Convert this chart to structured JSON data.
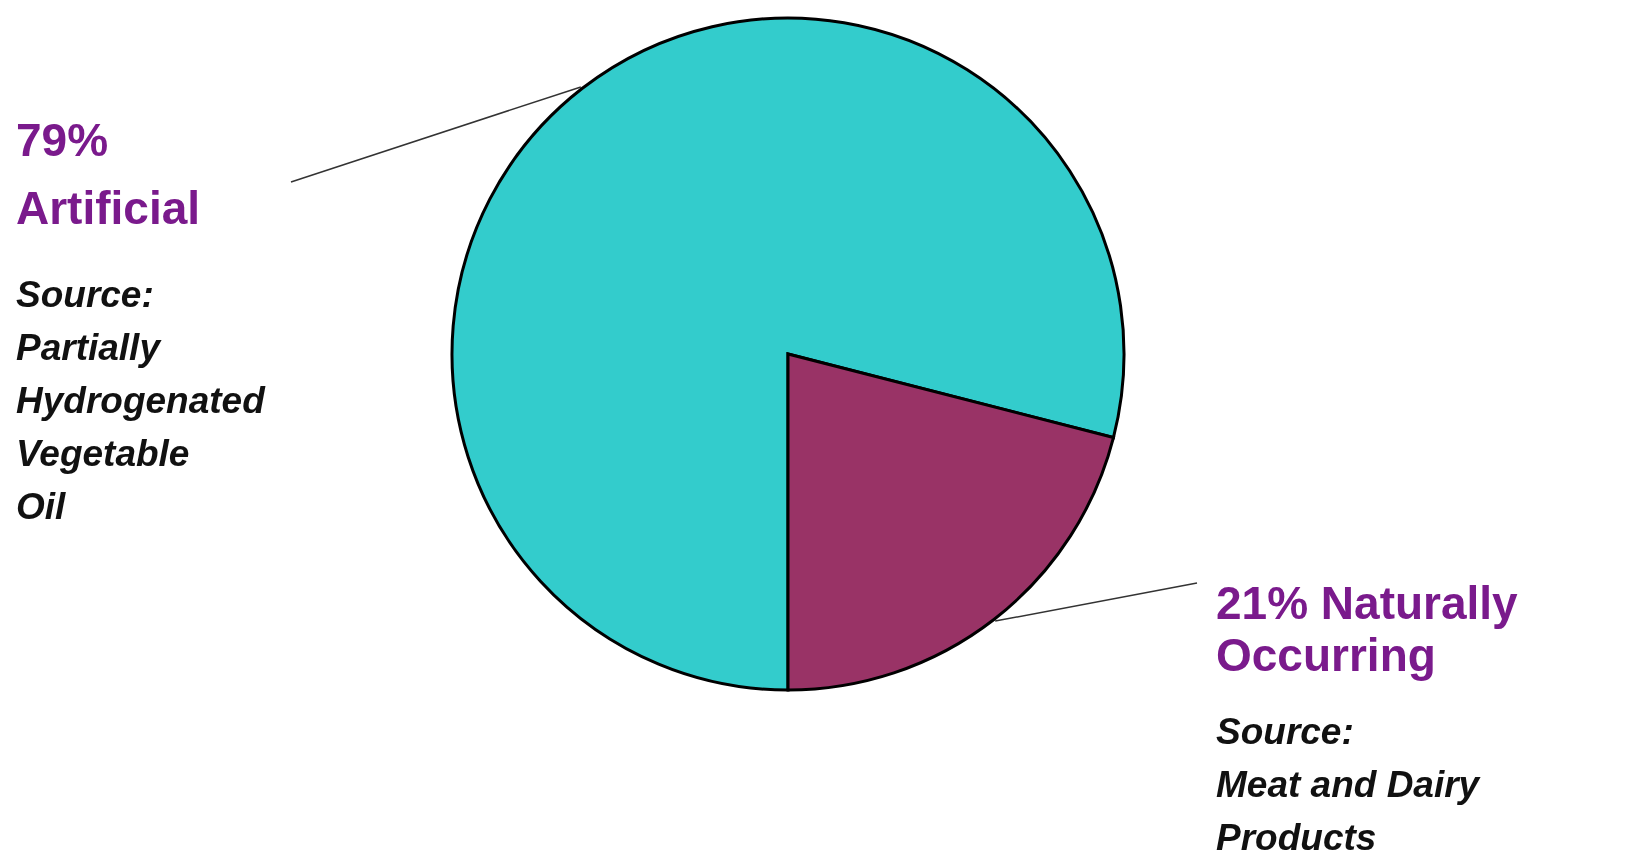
{
  "chart_data": {
    "type": "pie",
    "categories": [
      "Artificial",
      "Naturally Occurring"
    ],
    "values": [
      79,
      21
    ],
    "colors": [
      "#33cccc",
      "#993366"
    ],
    "value_labels": [
      "79%",
      "21%"
    ],
    "annotations": [
      "Source: Partially Hydrogenated Vegetable Oil",
      "Source: Meat and Dairy Products"
    ]
  }
}
